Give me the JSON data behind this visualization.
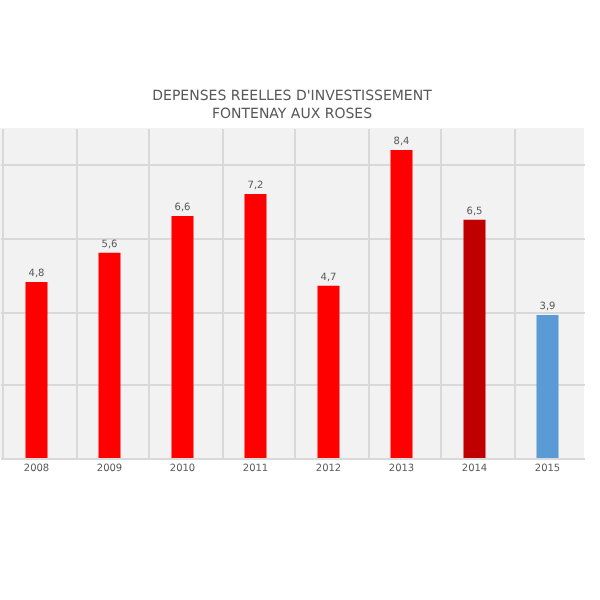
{
  "chart_data": {
    "type": "bar",
    "title": [
      "DEPENSES REELLES D'INVESTISSEMENT",
      "FONTENAY AUX ROSES"
    ],
    "categories": [
      "2008",
      "2009",
      "2010",
      "2011",
      "2012",
      "2013",
      "2014",
      "2015"
    ],
    "values": [
      4.8,
      5.6,
      6.6,
      7.2,
      4.7,
      8.4,
      6.5,
      3.9
    ],
    "value_labels": [
      "4,8",
      "5,6",
      "6,6",
      "7,2",
      "4,7",
      "8,4",
      "6,5",
      "3,9"
    ],
    "colors": [
      "#ff0000",
      "#ff0000",
      "#ff0000",
      "#ff0000",
      "#ff0000",
      "#ff0000",
      "#c00000",
      "#5b9bd5"
    ],
    "ylim": [
      0,
      9
    ],
    "tick_labels": "x",
    "grid": true
  }
}
